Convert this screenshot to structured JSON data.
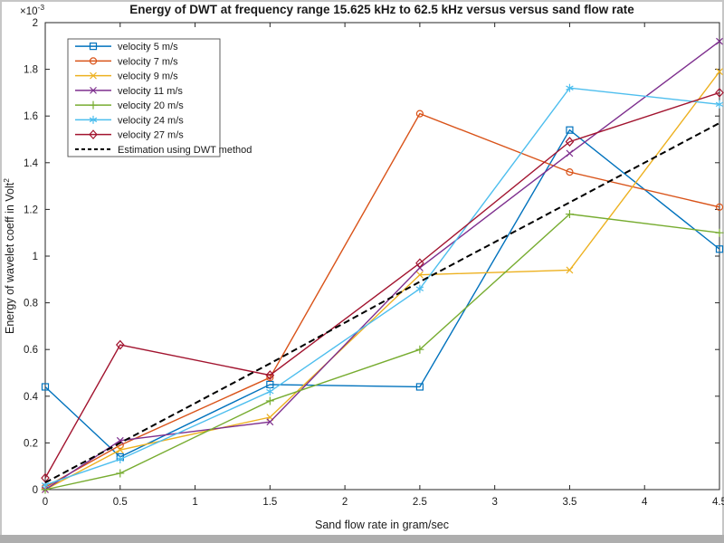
{
  "window": {
    "background": "#ffffff",
    "frame_color": "#c6c6c6",
    "axis_color": "#262626",
    "estimation_color": "#000000"
  },
  "chart_data": {
    "type": "line",
    "title": "Energy of DWT at frequency range 15.625 kHz to 62.5 kHz versus versus sand flow rate",
    "xlabel": "Sand flow rate in gram/sec",
    "ylabel_base": "Energy of wavelet coeff in Volt",
    "ylabel_superscript": "2",
    "y_exponent_base": "×10",
    "y_exponent_superscript": "-3",
    "y_unit_scale": "all y values are ×10⁻³ Volt²",
    "grid": false,
    "legend_position": "top-left",
    "xlim": [
      0,
      4.5
    ],
    "ylim": [
      0,
      2
    ],
    "x_ticks": [
      0,
      0.5,
      1,
      1.5,
      2,
      2.5,
      3,
      3.5,
      4,
      4.5
    ],
    "x_tick_labels": [
      "0",
      "0.5",
      "1",
      "1.5",
      "2",
      "2.5",
      "3",
      "3.5",
      "4",
      "4.5"
    ],
    "y_ticks": [
      0,
      0.2,
      0.4,
      0.6,
      0.8,
      1,
      1.2,
      1.4,
      1.6,
      1.8,
      2
    ],
    "y_tick_labels": [
      "0",
      "0.2",
      "0.4",
      "0.6",
      "0.8",
      "1",
      "1.2",
      "1.4",
      "1.6",
      "1.8",
      "2"
    ],
    "x": [
      0,
      0.5,
      1.5,
      2.5,
      3.5,
      4.5
    ],
    "series": [
      {
        "name": "velocity 5 m/s",
        "color": "#0072BD",
        "marker": "square",
        "dashed": false,
        "values": [
          0.44,
          0.14,
          0.45,
          0.44,
          1.54,
          1.03
        ]
      },
      {
        "name": "velocity 7 m/s",
        "color": "#D95319",
        "marker": "circle",
        "dashed": false,
        "values": [
          0.01,
          0.19,
          0.48,
          1.61,
          1.36,
          1.21
        ]
      },
      {
        "name": "velocity 9 m/s",
        "color": "#EDB120",
        "marker": "x",
        "dashed": false,
        "values": [
          0.0,
          0.17,
          0.31,
          0.92,
          0.94,
          1.79
        ]
      },
      {
        "name": "velocity 11 m/s",
        "color": "#7E2F8E",
        "marker": "x",
        "dashed": false,
        "values": [
          0.0,
          0.21,
          0.29,
          0.95,
          1.44,
          1.92
        ]
      },
      {
        "name": "velocity 20 m/s",
        "color": "#77AC30",
        "marker": "plus",
        "dashed": false,
        "values": [
          0.0,
          0.07,
          0.38,
          0.6,
          1.18,
          1.1
        ]
      },
      {
        "name": "velocity 24 m/s",
        "color": "#4DBEEE",
        "marker": "asterisk",
        "dashed": false,
        "values": [
          0.02,
          0.13,
          0.42,
          0.86,
          1.72,
          1.65
        ]
      },
      {
        "name": "velocity 27 m/s",
        "color": "#A2142F",
        "marker": "diamond",
        "dashed": false,
        "values": [
          0.05,
          0.62,
          0.49,
          0.97,
          1.49,
          1.7
        ]
      },
      {
        "name": "Estimation using DWT method",
        "color": "#000000",
        "marker": "none",
        "dashed": true,
        "values": [
          0.03,
          0.2,
          0.54,
          0.89,
          1.23,
          1.57
        ]
      }
    ]
  }
}
